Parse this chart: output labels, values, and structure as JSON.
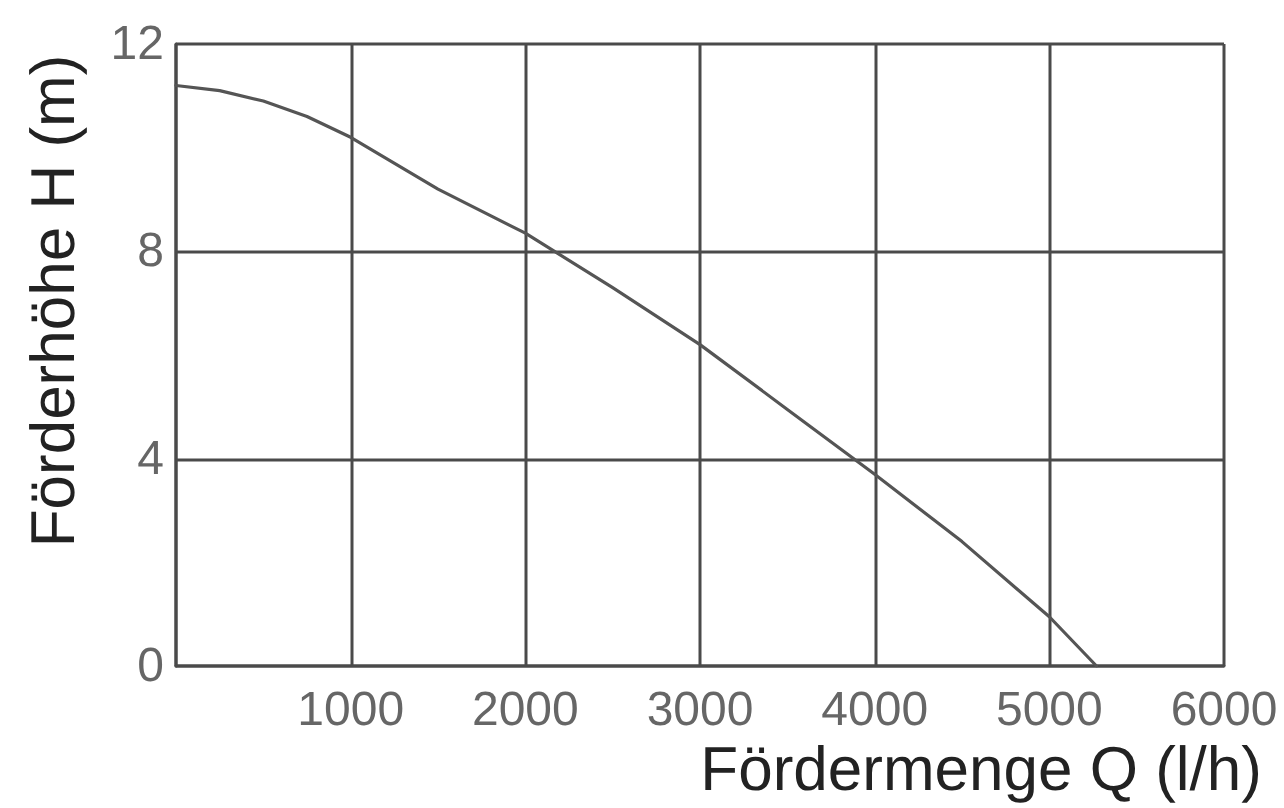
{
  "chart_data": {
    "type": "line",
    "xlabel": "Fördermenge Q (l/h)",
    "ylabel": "Förderhöhe H (m)",
    "x": [
      0,
      250,
      500,
      750,
      1000,
      1500,
      2000,
      2500,
      3000,
      3500,
      4000,
      4500,
      5000,
      5270
    ],
    "values": [
      11.2,
      11.1,
      10.9,
      10.6,
      10.2,
      9.2,
      8.35,
      7.3,
      6.2,
      4.95,
      3.7,
      2.4,
      0.95,
      0
    ],
    "color": "#555555",
    "xlim": [
      0,
      6000
    ],
    "xticks": [
      {
        "value": 0,
        "label": null
      },
      1000,
      2000,
      3000,
      4000,
      5000,
      6000
    ],
    "ylim": [
      0,
      12
    ],
    "yticks": [
      0,
      4,
      8,
      12
    ],
    "grid": true,
    "marker": "none",
    "line_style": "solid"
  }
}
